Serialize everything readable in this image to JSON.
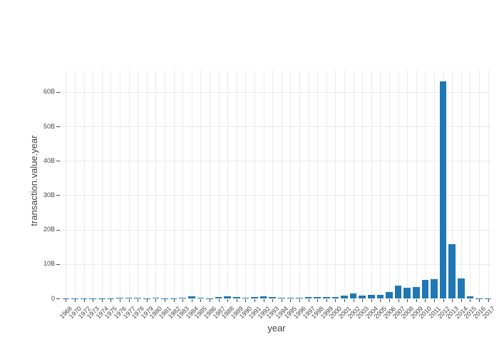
{
  "chart_data": {
    "type": "bar",
    "title": "",
    "xlabel": "year",
    "ylabel": "transaction.value.year",
    "legend": null,
    "grid": "on",
    "bar_color": "#1f77b4",
    "text_color": "#444444",
    "gridline_color": "#ebebeb",
    "background_color": "#ffffff",
    "tick_angle": -45,
    "ylim": [
      0,
      66
    ],
    "yticks": [
      "0",
      "10B",
      "20B",
      "30B",
      "40B",
      "50B",
      "60B"
    ],
    "ytick_values": [
      0,
      10,
      20,
      30,
      40,
      50,
      60
    ],
    "value_unit": "B",
    "categories": [
      "1968",
      "1970",
      "1972",
      "1973",
      "1974",
      "1975",
      "1976",
      "1977",
      "1978",
      "1979",
      "1980",
      "1981",
      "1982",
      "1983",
      "1984",
      "1985",
      "1986",
      "1987",
      "1988",
      "1989",
      "1990",
      "1991",
      "1992",
      "1993",
      "1994",
      "1995",
      "1996",
      "1997",
      "1998",
      "1999",
      "2000",
      "2001",
      "2002",
      "2003",
      "2004",
      "2005",
      "2006",
      "2007",
      "2008",
      "2009",
      "2010",
      "2011",
      "2012",
      "2013",
      "2014",
      "2015",
      "2016",
      "2017"
    ],
    "values": [
      0.05,
      0.03,
      0.03,
      0.04,
      0.1,
      0.1,
      0.12,
      0.12,
      0.12,
      0.1,
      0.12,
      0.04,
      0.08,
      0.25,
      0.55,
      0.25,
      0.08,
      0.45,
      0.55,
      0.45,
      0.3,
      0.5,
      0.55,
      0.5,
      0.2,
      0.28,
      0.2,
      0.5,
      0.35,
      0.42,
      0.35,
      0.75,
      1.4,
      0.8,
      1.0,
      0.95,
      1.9,
      3.8,
      3.1,
      3.4,
      5.4,
      5.6,
      63,
      15.7,
      5.8,
      0.7,
      0.05,
      0.02
    ]
  }
}
